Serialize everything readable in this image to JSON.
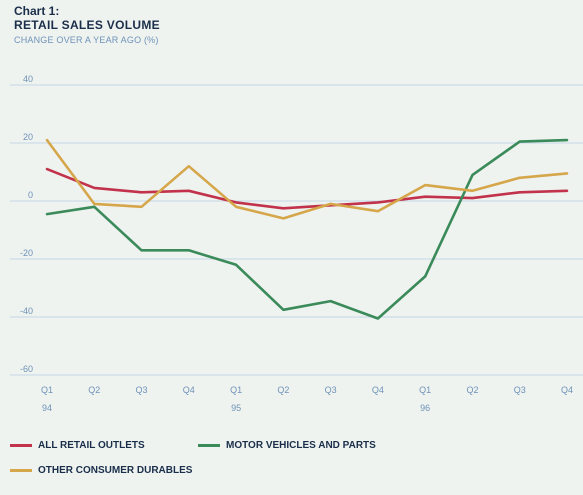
{
  "chart_data": {
    "type": "line",
    "title": "Chart 1:",
    "subtitle": "RETAIL SALES VOLUME",
    "ylabel": "CHANGE OVER A YEAR AGO (%)",
    "xlabel": "",
    "categories": [
      "Q1",
      "Q2",
      "Q3",
      "Q4",
      "Q1",
      "Q2",
      "Q3",
      "Q4",
      "Q1",
      "Q2",
      "Q3",
      "Q4"
    ],
    "year_labels": [
      "94",
      "",
      "",
      "",
      "95",
      "",
      "",
      "",
      "96",
      "",
      "",
      ""
    ],
    "yticks": [
      40,
      20,
      0,
      -20,
      -40,
      -60
    ],
    "ylim": [
      -60,
      40
    ],
    "grid": true,
    "legend_position": "bottom",
    "series": [
      {
        "name": "ALL RETAIL OUTLETS",
        "color": "#c2324b",
        "values": [
          11,
          4.5,
          3,
          3.5,
          -0.5,
          -2.5,
          -1.5,
          -0.5,
          1.5,
          1,
          3,
          3.5
        ]
      },
      {
        "name": "MOTOR VEHICLES AND PARTS",
        "color": "#3b8a5a",
        "values": [
          -4.5,
          -2,
          -17,
          -17,
          -22,
          -37.5,
          -34.5,
          -40.5,
          -26,
          9,
          20.5,
          21
        ]
      },
      {
        "name": "OTHER CONSUMER DURABLES",
        "color": "#d6a64b",
        "values": [
          21,
          -1,
          -2,
          12,
          -2,
          -6,
          -1,
          -3.5,
          5.5,
          3.5,
          8,
          9.5
        ]
      }
    ]
  }
}
